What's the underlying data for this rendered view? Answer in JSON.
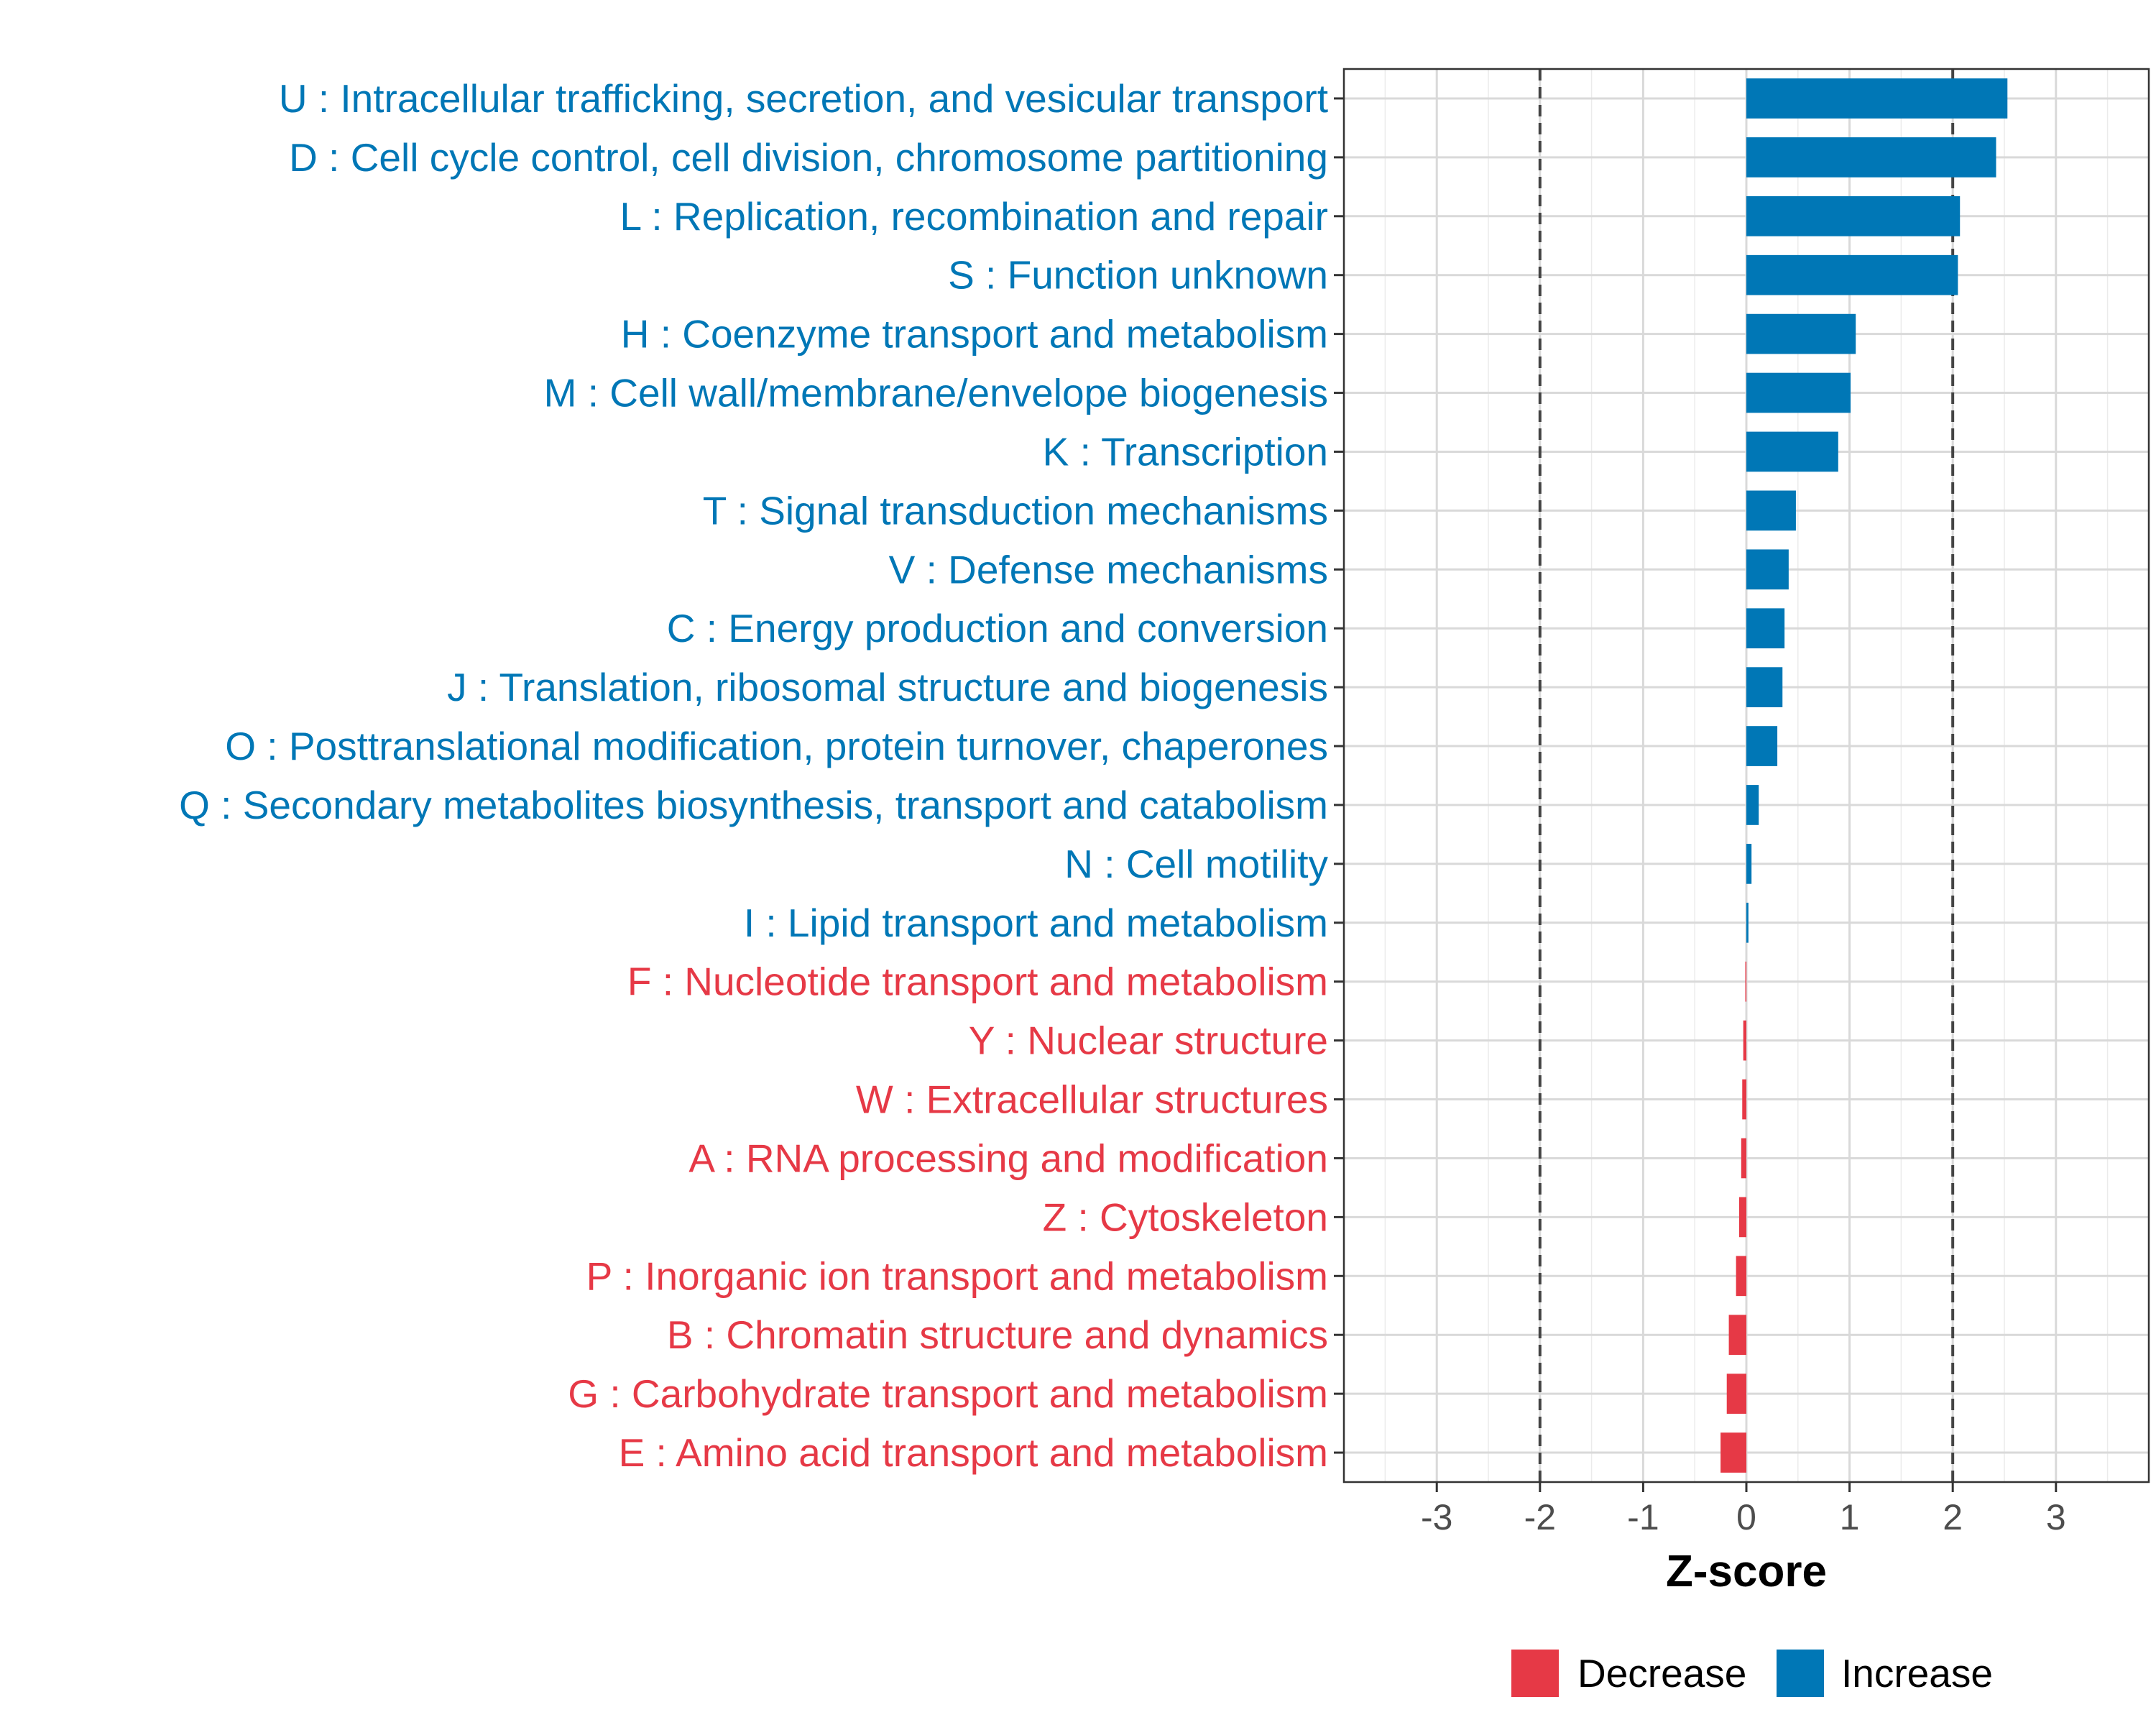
{
  "chart_data": {
    "type": "bar",
    "orientation": "horizontal",
    "xlabel": "Z-score",
    "xlim": [
      -3.9,
      3.9
    ],
    "x_ticks": [
      -3,
      -2,
      -1,
      0,
      1,
      2,
      3
    ],
    "x_tick_labels": [
      "-3",
      "-2",
      "-1",
      "0",
      "1",
      "2",
      "3"
    ],
    "reference_lines": [
      -2,
      2
    ],
    "grid": true,
    "legend_position": "bottom",
    "colors": {
      "Decrease": "#e63946",
      "Increase": "#0077b6"
    },
    "legend": [
      {
        "label": "Decrease",
        "color": "#e63946"
      },
      {
        "label": "Increase",
        "color": "#0077b6"
      }
    ],
    "categories": [
      "U : Intracellular trafficking, secretion, and vesicular transport",
      "D : Cell cycle control, cell division, chromosome partitioning",
      "L : Replication, recombination and repair",
      "S : Function unknown",
      "H : Coenzyme transport and metabolism",
      "M : Cell wall/membrane/envelope biogenesis",
      "K : Transcription",
      "T : Signal transduction mechanisms",
      "V : Defense mechanisms",
      "C : Energy production and conversion",
      "J : Translation, ribosomal structure and biogenesis",
      "O : Posttranslational modification, protein turnover, chaperones",
      "Q : Secondary metabolites biosynthesis, transport and catabolism",
      "N : Cell motility",
      "I : Lipid transport and metabolism",
      "F : Nucleotide transport and metabolism",
      "Y : Nuclear structure",
      "W : Extracellular structures",
      "A : RNA processing and modification",
      "Z : Cytoskeleton",
      "P : Inorganic ion transport and metabolism",
      "B : Chromatin structure and dynamics",
      "G : Carbohydrate transport and metabolism",
      "E : Amino acid transport and metabolism"
    ],
    "values": [
      2.53,
      2.42,
      2.07,
      2.05,
      1.06,
      1.01,
      0.89,
      0.48,
      0.41,
      0.37,
      0.35,
      0.3,
      0.12,
      0.05,
      0.02,
      -0.01,
      -0.03,
      -0.04,
      -0.05,
      -0.07,
      -0.1,
      -0.17,
      -0.19,
      -0.25
    ],
    "direction": [
      "Increase",
      "Increase",
      "Increase",
      "Increase",
      "Increase",
      "Increase",
      "Increase",
      "Increase",
      "Increase",
      "Increase",
      "Increase",
      "Increase",
      "Increase",
      "Increase",
      "Increase",
      "Decrease",
      "Decrease",
      "Decrease",
      "Decrease",
      "Decrease",
      "Decrease",
      "Decrease",
      "Decrease",
      "Decrease"
    ]
  }
}
